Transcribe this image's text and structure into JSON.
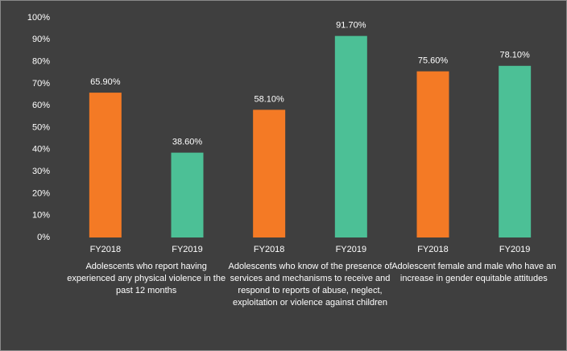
{
  "chart_data": {
    "type": "bar",
    "categories": [
      "FY2018",
      "FY2019",
      "FY2018",
      "FY2019",
      "FY2018",
      "FY2019"
    ],
    "values": [
      65.9,
      38.6,
      58.1,
      91.7,
      75.6,
      78.1
    ],
    "value_labels": [
      "65.90%",
      "38.60%",
      "58.10%",
      "91.70%",
      "75.60%",
      "78.10%"
    ],
    "colors": [
      "#f47a25",
      "#4cc096",
      "#f47a25",
      "#4cc096",
      "#f47a25",
      "#4cc096"
    ],
    "groups": [
      "Adolescents who report having experienced any physical violence in the past 12 months",
      "Adolescents who know of the presence of services and mechanisms to receive and respond to reports of abuse, neglect, exploitation or violence against children",
      "Adolescent female and male who have an increase in gender equitable attitudes"
    ],
    "ylim": [
      0,
      100
    ],
    "yticks": [
      {
        "value": 0,
        "label": "0%"
      },
      {
        "value": 10,
        "label": "10%"
      },
      {
        "value": 20,
        "label": "20%"
      },
      {
        "value": 30,
        "label": "30%"
      },
      {
        "value": 40,
        "label": "40%"
      },
      {
        "value": 50,
        "label": "50%"
      },
      {
        "value": 60,
        "label": "60%"
      },
      {
        "value": 70,
        "label": "70%"
      },
      {
        "value": 80,
        "label": "80%"
      },
      {
        "value": 90,
        "label": "90%"
      },
      {
        "value": 100,
        "label": "100%"
      }
    ],
    "grid": false
  }
}
